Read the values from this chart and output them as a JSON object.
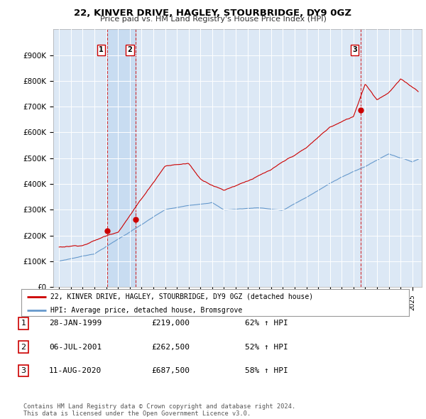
{
  "title": "22, KINVER DRIVE, HAGLEY, STOURBRIDGE, DY9 0GZ",
  "subtitle": "Price paid vs. HM Land Registry's House Price Index (HPI)",
  "ylabel_ticks": [
    "£0",
    "£100K",
    "£200K",
    "£300K",
    "£400K",
    "£500K",
    "£600K",
    "£700K",
    "£800K",
    "£900K"
  ],
  "ylim": [
    0,
    1000000
  ],
  "xlim_start": 1994.5,
  "xlim_end": 2025.8,
  "price_color": "#cc0000",
  "hpi_color": "#6699cc",
  "transactions": [
    {
      "date_num": 1999.07,
      "price": 219000,
      "label": "1"
    },
    {
      "date_num": 2001.51,
      "price": 262500,
      "label": "2"
    },
    {
      "date_num": 2020.61,
      "price": 687500,
      "label": "3"
    }
  ],
  "legend_price_label": "22, KINVER DRIVE, HAGLEY, STOURBRIDGE, DY9 0GZ (detached house)",
  "legend_hpi_label": "HPI: Average price, detached house, Bromsgrove",
  "table_rows": [
    {
      "num": "1",
      "date": "28-JAN-1999",
      "price": "£219,000",
      "hpi": "62% ↑ HPI"
    },
    {
      "num": "2",
      "date": "06-JUL-2001",
      "price": "£262,500",
      "hpi": "52% ↑ HPI"
    },
    {
      "num": "3",
      "date": "11-AUG-2020",
      "price": "£687,500",
      "hpi": "58% ↑ HPI"
    }
  ],
  "footnote": "Contains HM Land Registry data © Crown copyright and database right 2024.\nThis data is licensed under the Open Government Licence v3.0.",
  "vline_color": "#cc0000",
  "background_chart": "#dce8f5",
  "grid_color": "#ffffff",
  "shade_color": "#c0d8f0"
}
